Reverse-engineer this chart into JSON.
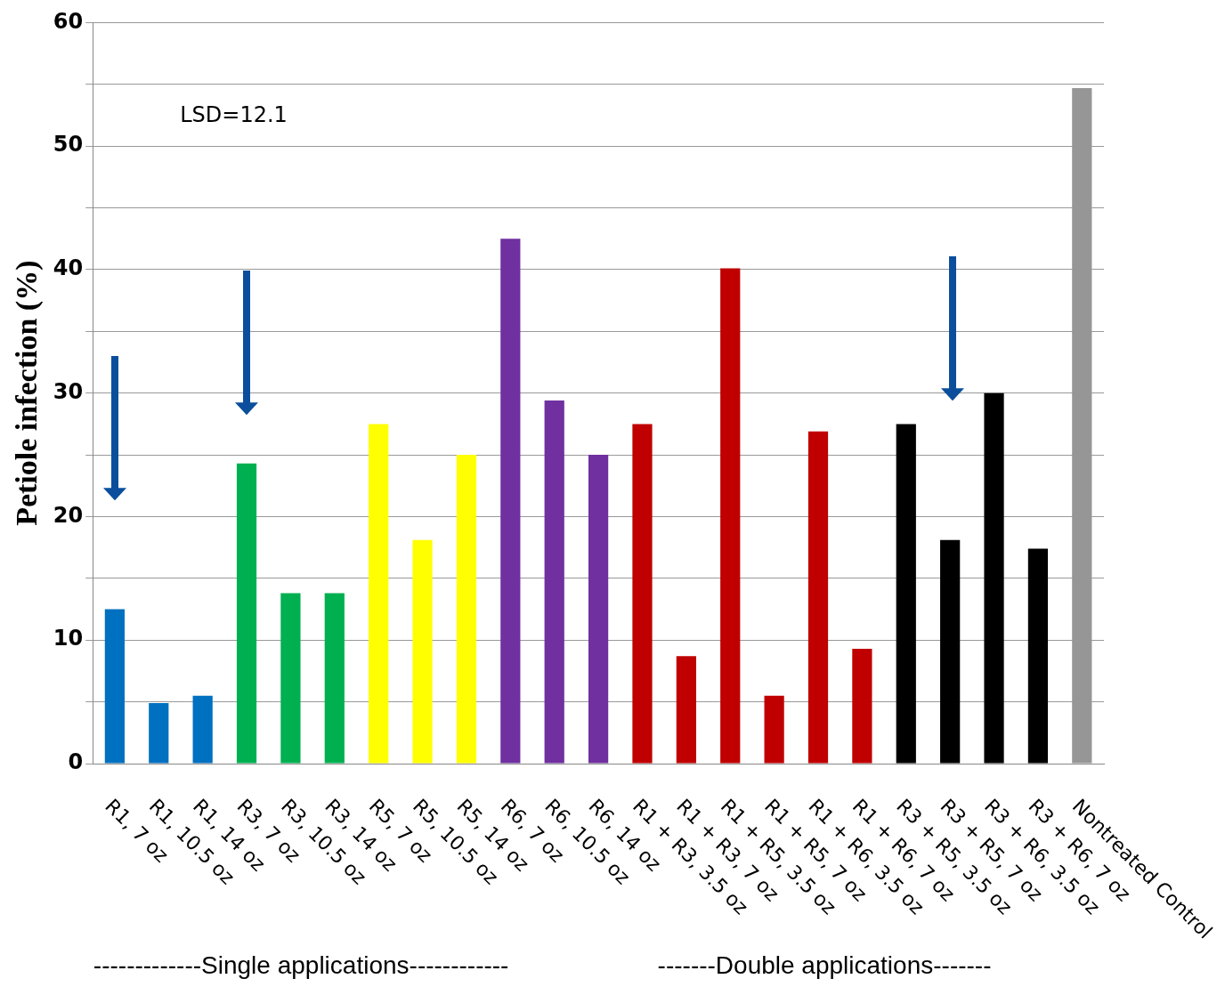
{
  "chart_data": {
    "type": "bar",
    "ylabel": "Petiole infection (%)",
    "categories": [
      "R1, 7 oz",
      "R1, 10.5 oz",
      "R1, 14 oz",
      "R3, 7 oz",
      "R3, 10.5 oz",
      "R3, 14 oz",
      "R5, 7 oz",
      "R5, 10.5 oz",
      "R5, 14 oz",
      "R6, 7 oz",
      "R6, 10.5 oz",
      "R6, 14 oz",
      "R1 + R3, 3.5 oz",
      "R1 + R3, 7 oz",
      "R1 + R5, 3.5 oz",
      "R1 + R5, 7 oz",
      "R1 + R6, 3.5 oz",
      "R1 + R6, 7 oz",
      "R3 + R5, 3.5 oz",
      "R3 + R5, 7 oz",
      "R3 + R6, 3.5 oz",
      "R3 + R6, 7 oz",
      "Nontreated Control"
    ],
    "values": [
      12.5,
      4.9,
      5.5,
      24.3,
      13.8,
      13.8,
      27.5,
      18.1,
      25.0,
      42.5,
      29.4,
      25.0,
      27.5,
      8.7,
      40.1,
      5.5,
      26.9,
      9.3,
      27.5,
      18.1,
      30.0,
      17.4,
      54.7
    ],
    "colors": [
      "#0070c0",
      "#0070c0",
      "#0070c0",
      "#00b050",
      "#00b050",
      "#00b050",
      "#ffff00",
      "#ffff00",
      "#ffff00",
      "#7030a0",
      "#7030a0",
      "#7030a0",
      "#c00000",
      "#c00000",
      "#c00000",
      "#c00000",
      "#c00000",
      "#c00000",
      "#000000",
      "#000000",
      "#000000",
      "#000000",
      "#969696"
    ],
    "ylim": [
      0,
      60
    ],
    "yticks": [
      0,
      {
        "value": 5,
        "label": null
      },
      10,
      {
        "value": 15,
        "label": null
      },
      20,
      {
        "value": 25,
        "label": null
      },
      30,
      {
        "value": 35,
        "label": null
      },
      40,
      {
        "value": 45,
        "label": null
      },
      50,
      {
        "value": 55,
        "label": null
      },
      60
    ],
    "grid": "y",
    "annotations": [
      "LSD=12.1",
      "-------------Single applications------------",
      "-------Double applications-------"
    ]
  }
}
